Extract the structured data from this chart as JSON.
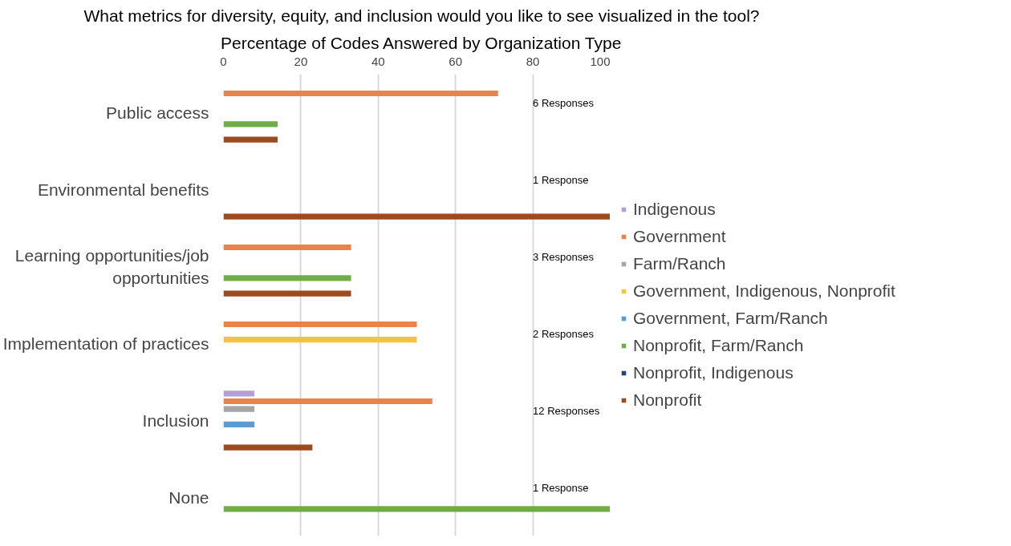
{
  "chart_data": {
    "type": "bar",
    "orientation": "horizontal",
    "title": "What metrics for diversity, equity, and inclusion would you like to see visualized in the tool?",
    "subtitle": "Percentage of Codes Answered by Organization Type",
    "categories": [
      "Public access",
      "Environmental benefits",
      "Learning opportunities/job opportunities",
      "Implementation of practices",
      "Inclusion",
      "None"
    ],
    "series": [
      {
        "name": "Indigenous",
        "color": "#b4a0d6",
        "values": [
          null,
          null,
          null,
          null,
          8,
          null
        ]
      },
      {
        "name": "Government",
        "color": "#e8834a",
        "values": [
          71,
          null,
          33,
          50,
          54,
          null
        ]
      },
      {
        "name": "Farm/Ranch",
        "color": "#a5a5a5",
        "values": [
          null,
          null,
          null,
          null,
          8,
          null
        ]
      },
      {
        "name": "Government, Indigenous, Nonprofit",
        "color": "#f5c342",
        "values": [
          null,
          null,
          null,
          50,
          null,
          null
        ]
      },
      {
        "name": "Government, Farm/Ranch",
        "color": "#5b9bd5",
        "values": [
          null,
          null,
          null,
          null,
          8,
          null
        ]
      },
      {
        "name": "Nonprofit, Farm/Ranch",
        "color": "#70ad47",
        "values": [
          14,
          null,
          33,
          null,
          null,
          100
        ]
      },
      {
        "name": "Nonprofit, Indigenous",
        "color": "#264478",
        "values": [
          null,
          null,
          null,
          null,
          null,
          null
        ]
      },
      {
        "name": "Nonprofit",
        "color": "#9e4a1e",
        "values": [
          14,
          100,
          33,
          null,
          23,
          null
        ]
      }
    ],
    "xlim": [
      0,
      100
    ],
    "xticks": [
      0,
      20,
      40,
      60,
      80,
      100
    ],
    "grid": "x",
    "legend": "right",
    "annotations": [
      "6 Responses",
      "1 Response",
      "3 Responses",
      "2 Responses",
      "12 Responses",
      "1 Response"
    ]
  }
}
